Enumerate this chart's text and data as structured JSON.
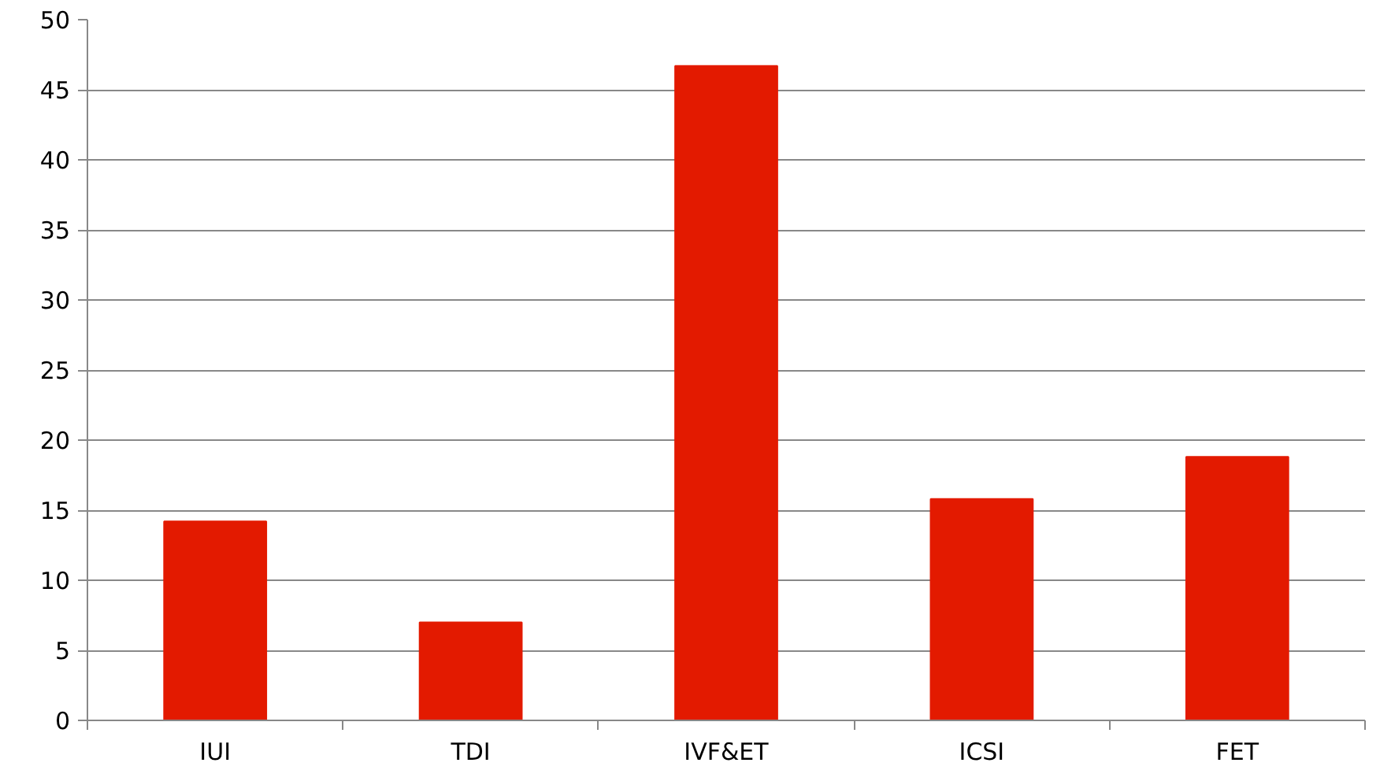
{
  "chart_data": {
    "type": "bar",
    "categories": [
      "IUI",
      "TDI",
      "IVF&ET",
      "ICSI",
      "FET"
    ],
    "values": [
      14.2,
      7.0,
      46.7,
      15.8,
      18.8
    ],
    "color": "#e31a00",
    "ylim": [
      0,
      50
    ],
    "yticks": [
      0,
      5,
      10,
      15,
      20,
      25,
      30,
      35,
      40,
      45,
      50
    ],
    "grid": "y"
  }
}
